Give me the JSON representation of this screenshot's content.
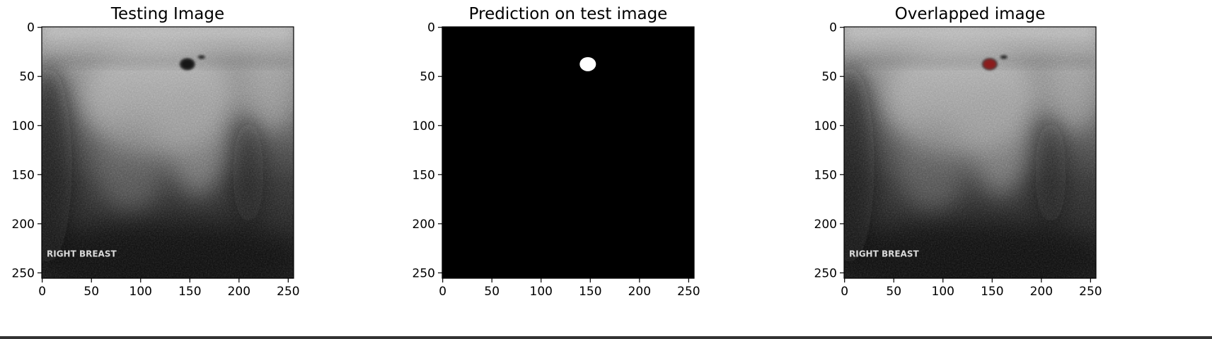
{
  "figure": {
    "panels": [
      {
        "id": "testing",
        "title": "Testing Image",
        "kind": "ultrasound",
        "image_label": "RIGHT BREAST",
        "lesion_color": "#151515"
      },
      {
        "id": "prediction",
        "title": "Prediction on test image",
        "kind": "mask",
        "mask_color": "#ffffff",
        "background_color": "#000000"
      },
      {
        "id": "overlap",
        "title": "Overlapped image",
        "kind": "ultrasound",
        "image_label": "RIGHT BREAST",
        "lesion_color": "#8b1a1a"
      }
    ],
    "image_extent": 256,
    "lesion": {
      "x": 148,
      "y": 38
    },
    "x_ticks": [
      "0",
      "50",
      "100",
      "150",
      "200",
      "250"
    ],
    "y_ticks": [
      "0",
      "50",
      "100",
      "150",
      "200",
      "250"
    ]
  }
}
